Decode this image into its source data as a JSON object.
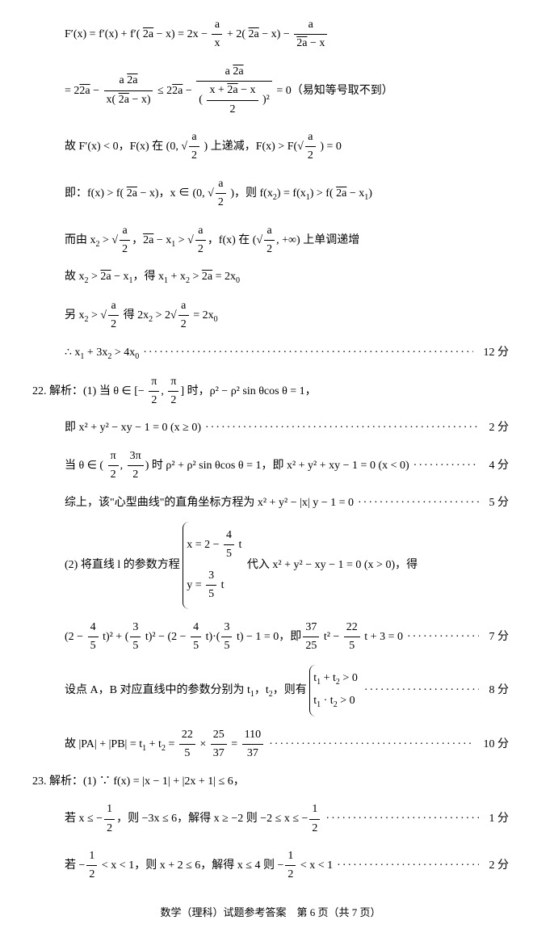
{
  "lines": {
    "l1": "F′(x) = f′(x) + f′(√(2a) − x) = 2x − a/x + 2(√(2a) − x) − a/(√(2a) − x)",
    "l2": "= 2√(2a) − (a·√(2a))/(x(√(2a) − x)) ≤ 2√(2a) − (a·√(2a))/((x + √(2a) − x)/2)² = 0（易知等号取不到）",
    "l3": "故 F′(x) < 0，F(x) 在 (0, √(a/2)) 上递减，F(x) > F(√(a/2)) = 0",
    "l4": "即：f(x) > f(√(2a) − x)，x ∈ (0, √(a/2))，则 f(x₂) = f(x₁) > f(√(2a) − x₁)",
    "l5": "而由 x₂ > √(a/2)，√(2a) − x₁ > √(a/2)，f(x) 在 (√(a/2), +∞) 上单调递增",
    "l6": "故 x₂ > √(2a) − x₁，得 x₁ + x₂ > √(2a) = 2x₀",
    "l7": "另 x₂ > √(a/2) 得 2x₂ > 2√(a/2) = 2x₀",
    "l8": "∴ x₁ + 3x₂ > 4x₀",
    "l8_score": "12 分",
    "q22": "22. 解析：(1) 当 θ ∈ [−π/2, π/2] 时，ρ² − ρ² sin θ cos θ = 1，",
    "l9": "即 x² + y² − xy − 1 = 0 (x ≥ 0)",
    "l9_score": "2 分",
    "l10": "当 θ ∈ (π/2, 3π/2) 时 ρ² + ρ² sin θ cos θ = 1，即 x² + y² + xy − 1 = 0 (x < 0)",
    "l10_score": "4 分",
    "l11": "综上，该\"心型曲线\"的直角坐标方程为 x² + y² − |x| y − 1 = 0",
    "l11_score": "5 分",
    "l12a": "(2) 将直线 l 的参数方程",
    "l12b1": "x = 2 − (4/5)t",
    "l12b2": "y = (3/5)t",
    "l12c": "代入 x² + y² − xy − 1 = 0 (x > 0)，得",
    "l13": "(2 − (4/5)t)² + ((3/5)t)² − (2 − (4/5)t)·((3/5)t) − 1 = 0，即 (37/25)t² − (22/5)t + 3 = 0",
    "l13_score": "7 分",
    "l14a": "设点 A，B 对应直线中的参数分别为 t₁，t₂，则有",
    "l14b1": "t₁ + t₂ > 0",
    "l14b2": "t₁ · t₂ > 0",
    "l14_score": "8 分",
    "l15": "故 |PA| + |PB| = t₁ + t₂ = (22/5) × (25/37) = 110/37",
    "l15_score": "10 分",
    "q23": "23. 解析：(1) ∵ f(x) = |x − 1| + |2x + 1| ≤ 6，",
    "l16": "若 x ≤ −1/2，则 −3x ≤ 6，解得 x ≥ −2 则 −2 ≤ x ≤ −1/2",
    "l16_score": "1 分",
    "l17": "若 −1/2 < x < 1，则 x + 2 ≤ 6，解得 x ≤ 4 则 −1/2 < x < 1",
    "l17_score": "2 分"
  },
  "footer": "数学（理科）试题参考答案　第 6 页（共 7 页）",
  "dots": "·············································································"
}
